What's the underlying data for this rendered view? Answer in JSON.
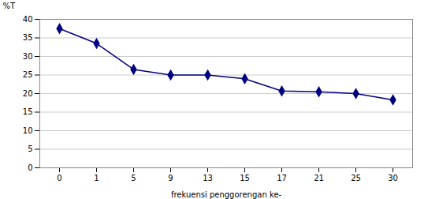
{
  "chart_data": {
    "type": "line",
    "categories": [
      "0",
      "1",
      "5",
      "9",
      "13",
      "15",
      "17",
      "21",
      "25",
      "30"
    ],
    "values": [
      37.5,
      33.5,
      26.5,
      25.0,
      25.0,
      24.0,
      20.7,
      20.5,
      20.0,
      18.3
    ],
    "xlabel": "frekuensi penggorengan ke-",
    "ylabel": "%T",
    "ylim": [
      0,
      40
    ],
    "yticks": [
      0,
      5,
      10,
      15,
      20,
      25,
      30,
      35,
      40
    ],
    "grid": true,
    "color": "#000080",
    "marker": "diamond"
  }
}
